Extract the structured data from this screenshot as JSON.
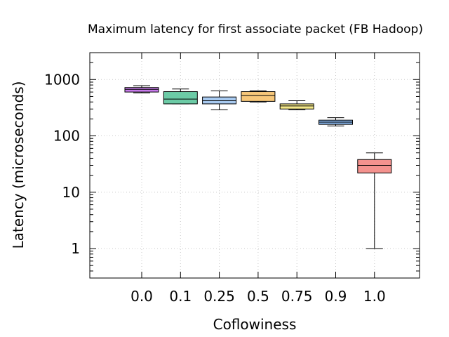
{
  "chart_data": {
    "type": "box",
    "title": "Maximum latency for first associate packet (FB Hadoop)",
    "xlabel": "Coflowiness",
    "ylabel": "Latency (microseconds)",
    "y_scale": "log",
    "ylim": [
      0.3,
      3000
    ],
    "y_ticks": [
      {
        "value": 1,
        "label": "1"
      },
      {
        "value": 10,
        "label": "10"
      },
      {
        "value": 100,
        "label": "100"
      },
      {
        "value": 1000,
        "label": "1000"
      }
    ],
    "grid": true,
    "legend": "none",
    "categories": [
      "0.0",
      "0.1",
      "0.25",
      "0.5",
      "0.75",
      "0.9",
      "1.0"
    ],
    "boxes": [
      {
        "category": "0.0",
        "min": 580,
        "q1": 600,
        "median": 670,
        "q3": 720,
        "max": 780,
        "color": "#c77bea"
      },
      {
        "category": "0.1",
        "min": 370,
        "q1": 370,
        "median": 450,
        "q3": 610,
        "max": 680,
        "color": "#6ccba6"
      },
      {
        "category": "0.25",
        "min": 290,
        "q1": 370,
        "median": 420,
        "q3": 490,
        "max": 630,
        "color": "#a8caf0"
      },
      {
        "category": "0.5",
        "min": 400,
        "q1": 410,
        "median": 520,
        "q3": 610,
        "max": 630,
        "color": "#f7c77a"
      },
      {
        "category": "0.75",
        "min": 290,
        "q1": 300,
        "median": 340,
        "q3": 370,
        "max": 420,
        "color": "#f5e98a"
      },
      {
        "category": "0.9",
        "min": 150,
        "q1": 160,
        "median": 175,
        "q3": 190,
        "max": 210,
        "color": "#85b2e8"
      },
      {
        "category": "1.0",
        "min": 1,
        "q1": 22,
        "median": 30,
        "q3": 38,
        "max": 50,
        "color": "#f4928e"
      }
    ]
  }
}
